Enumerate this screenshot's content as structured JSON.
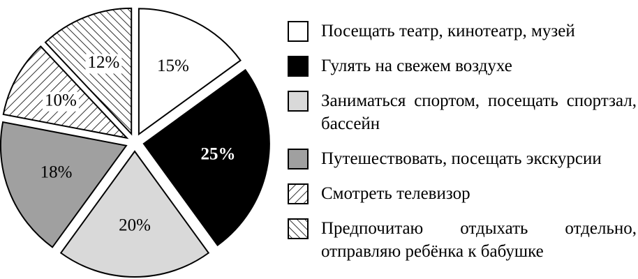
{
  "chart_data": {
    "type": "pie",
    "categories": [
      "Посещать театр, кинотеатр, музей",
      "Гулять на свежем воздухе",
      "Заниматься спортом, посещать спортзал, бассейн",
      "Путешествовать, посещать экскурсии",
      "Смотреть телевизор",
      "Предпочитаю отдыхать отдельно, отправляю ребёнка к бабушке"
    ],
    "values": [
      15,
      25,
      20,
      18,
      10,
      12
    ],
    "value_labels": [
      "15%",
      "25%",
      "20%",
      "18%",
      "10%",
      "12%"
    ],
    "colors": [
      "#ffffff",
      "#000000",
      "#d9d9d9",
      "#a0a0a0",
      "#ffffff",
      "#ffffff"
    ],
    "hatches": [
      null,
      null,
      null,
      null,
      "/",
      "\\"
    ],
    "exploded": true
  }
}
